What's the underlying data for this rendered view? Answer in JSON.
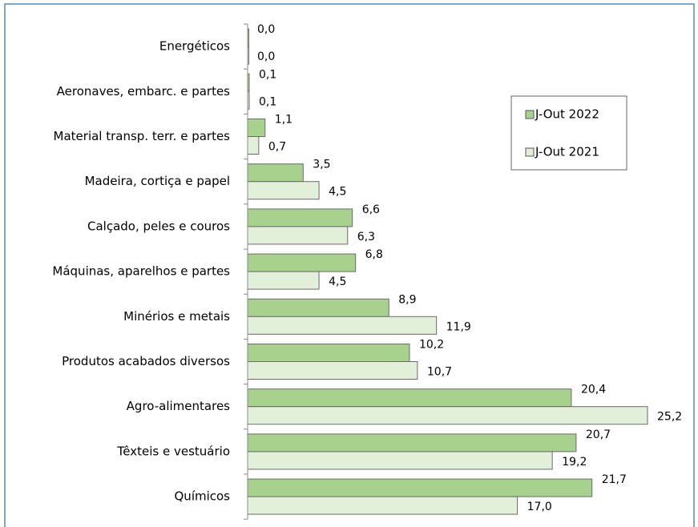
{
  "chart_data": {
    "type": "hbar",
    "categories": [
      "Energéticos",
      "Aeronaves, embarc. e partes",
      "Material transp. terr. e partes",
      "Madeira, cortiça e papel",
      "Calçado, peles e couros",
      "Máquinas, aparelhos e partes",
      "Minérios e metais",
      "Produtos acabados diversos",
      "Agro-alimentares",
      "Têxteis e vestuário",
      "Químicos"
    ],
    "series": [
      {
        "name": "J-Out 2022",
        "color": "#a9d18e",
        "values": [
          0.0,
          0.1,
          1.1,
          3.5,
          6.6,
          6.8,
          8.9,
          10.2,
          20.4,
          20.7,
          21.7
        ],
        "value_labels": [
          "0,0",
          "0,1",
          "1,1",
          "3,5",
          "6,6",
          "6,8",
          "8,9",
          "10,2",
          "20,4",
          "20,7",
          "21,7"
        ]
      },
      {
        "name": "J-Out 2021",
        "color": "#e2efd9",
        "values": [
          0.0,
          0.1,
          0.7,
          4.5,
          6.3,
          4.5,
          11.9,
          10.7,
          25.2,
          19.2,
          17.0
        ],
        "value_labels": [
          "0,0",
          "0,1",
          "0,7",
          "4,5",
          "6,3",
          "4,5",
          "11,9",
          "10,7",
          "25,2",
          "19,2",
          "17,0"
        ]
      }
    ]
  }
}
